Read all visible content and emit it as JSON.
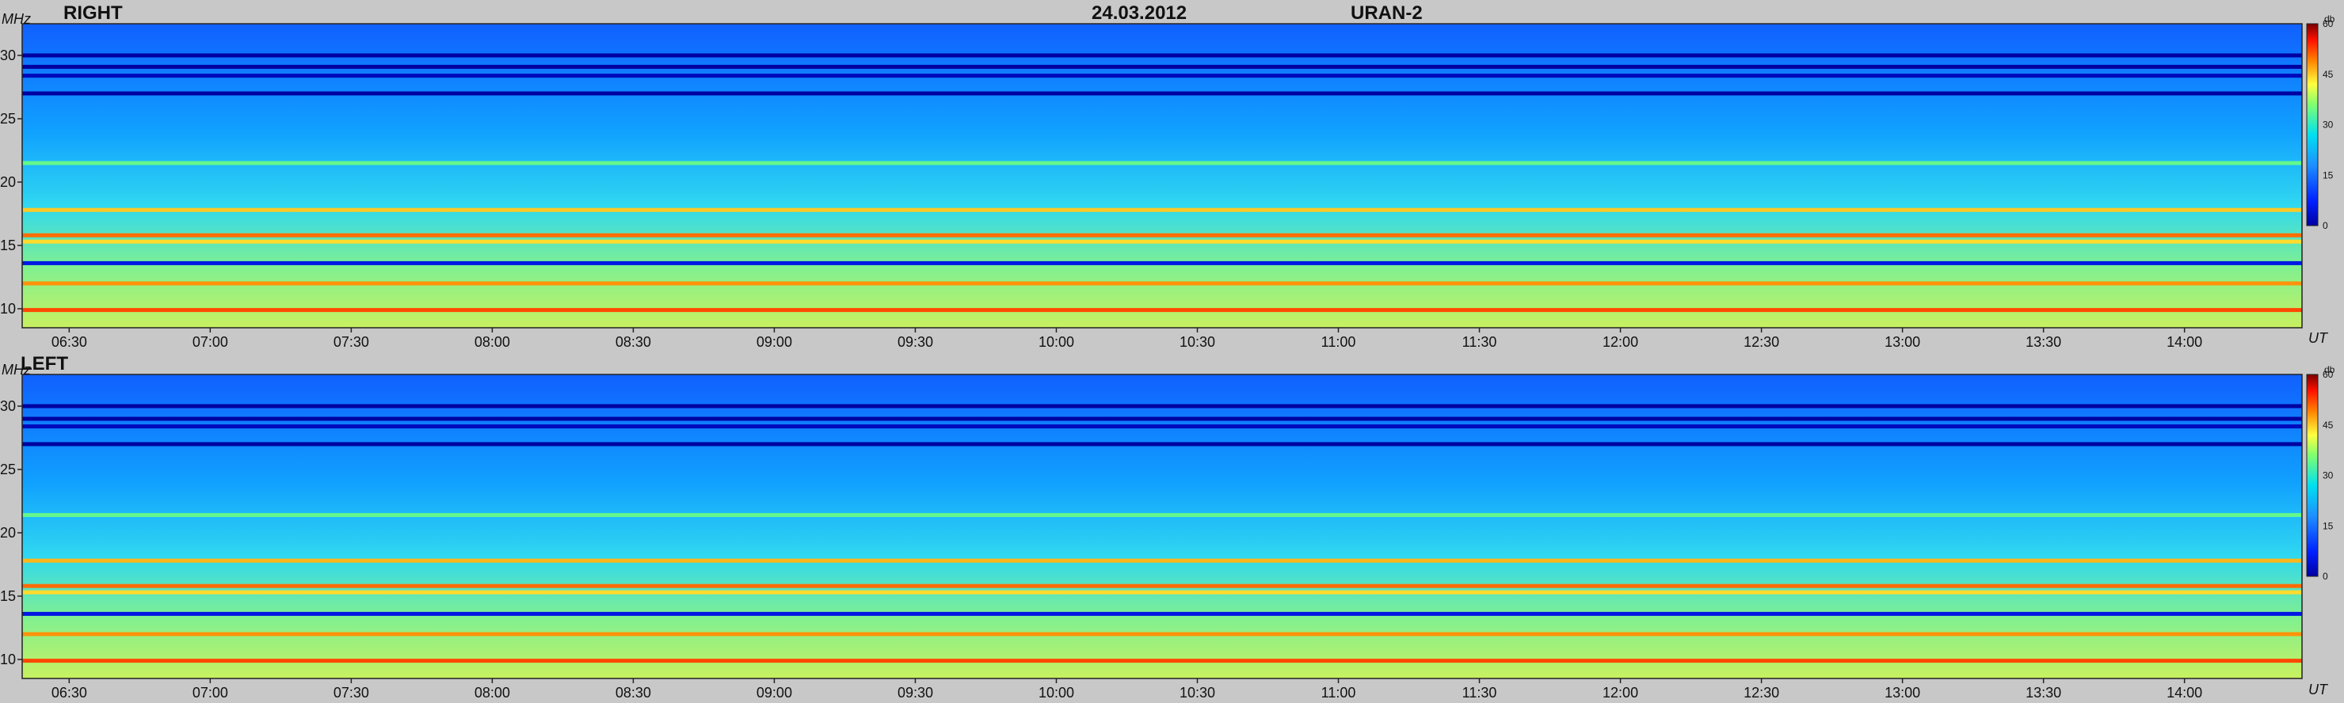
{
  "header": {
    "date": "24.03.2012",
    "instrument": "URAN-2"
  },
  "colors": {
    "background": "#c8c8c8",
    "low": "#0000a0",
    "mid_low": "#1e78ff",
    "mid": "#00e0f0",
    "mid_high": "#ffff40",
    "high": "#ff3000",
    "max": "#7a0000"
  },
  "chart_data": [
    {
      "type": "heatmap",
      "title": "RIGHT",
      "ylabel": "MHz",
      "xlabel": "UT",
      "x_ticks": [
        "06:30",
        "07:00",
        "07:30",
        "08:00",
        "08:30",
        "09:00",
        "09:30",
        "10:00",
        "10:30",
        "11:00",
        "11:30",
        "12:00",
        "12:30",
        "13:00",
        "13:30",
        "14:00"
      ],
      "y_ticks": [
        10,
        15,
        20,
        25,
        30
      ],
      "xlim": [
        "06:20",
        "14:25"
      ],
      "ylim": [
        8.5,
        32.5
      ],
      "colorbar": {
        "label": "db",
        "ticks": [
          0,
          15,
          30,
          45,
          60
        ],
        "range": [
          0,
          60
        ]
      },
      "notable_bands_mhz": [
        {
          "freq": 30.0,
          "level_db": 0
        },
        {
          "freq": 29.1,
          "level_db": 0
        },
        {
          "freq": 28.4,
          "level_db": 2
        },
        {
          "freq": 27.0,
          "level_db": 0
        },
        {
          "freq": 21.5,
          "level_db": 34
        },
        {
          "freq": 17.8,
          "level_db": 45
        },
        {
          "freq": 15.8,
          "level_db": 50
        },
        {
          "freq": 15.3,
          "level_db": 44
        },
        {
          "freq": 13.6,
          "level_db": 5
        },
        {
          "freq": 12.0,
          "level_db": 48
        },
        {
          "freq": 9.9,
          "level_db": 52
        }
      ]
    },
    {
      "type": "heatmap",
      "title": "LEFT",
      "ylabel": "MHz",
      "xlabel": "UT",
      "x_ticks": [
        "06:30",
        "07:00",
        "07:30",
        "08:00",
        "08:30",
        "09:00",
        "09:30",
        "10:00",
        "10:30",
        "11:00",
        "11:30",
        "12:00",
        "12:30",
        "13:00",
        "13:30",
        "14:00"
      ],
      "y_ticks": [
        10,
        15,
        20,
        25,
        30
      ],
      "xlim": [
        "06:20",
        "14:25"
      ],
      "ylim": [
        8.5,
        32.5
      ],
      "colorbar": {
        "label": "db",
        "ticks": [
          0,
          15,
          30,
          45,
          60
        ],
        "range": [
          0,
          60
        ]
      },
      "notable_bands_mhz": [
        {
          "freq": 30.0,
          "level_db": 0
        },
        {
          "freq": 29.0,
          "level_db": 0
        },
        {
          "freq": 28.4,
          "level_db": 2
        },
        {
          "freq": 27.0,
          "level_db": 0
        },
        {
          "freq": 21.4,
          "level_db": 34
        },
        {
          "freq": 17.8,
          "level_db": 46
        },
        {
          "freq": 15.8,
          "level_db": 50
        },
        {
          "freq": 15.3,
          "level_db": 44
        },
        {
          "freq": 13.6,
          "level_db": 5
        },
        {
          "freq": 12.0,
          "level_db": 48
        },
        {
          "freq": 9.9,
          "level_db": 52
        }
      ]
    }
  ]
}
